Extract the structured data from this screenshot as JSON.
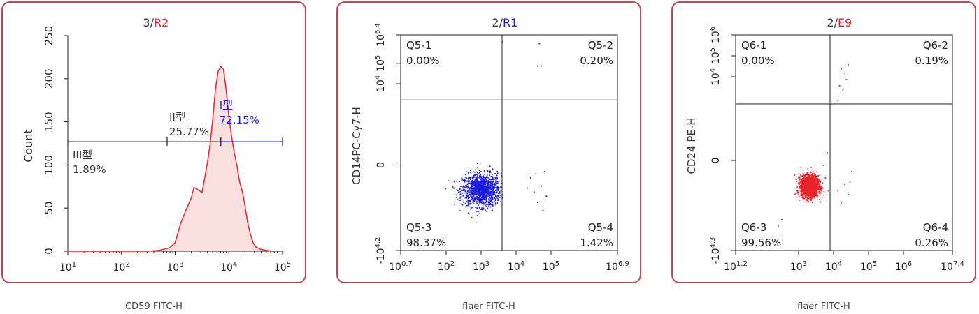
{
  "colors": {
    "frame": "#c8474f",
    "red": "#e8242b",
    "blue": "#1a1adb",
    "fill": "#fbe0e0",
    "axis": "#222222"
  },
  "panels": [
    {
      "title_prefix": "3/",
      "title_gate": "R2",
      "gate_color": "#e8242b",
      "xcaption": "CD59 FITC-H"
    },
    {
      "title_prefix": "2/",
      "title_gate": "R1",
      "gate_color": "#1a1adb",
      "xcaption": "flaer FITC-H"
    },
    {
      "title_prefix": "2/",
      "title_gate": "E9",
      "gate_color": "#e8242b",
      "xcaption": "flaer FITC-H"
    }
  ],
  "chart_data": [
    {
      "type": "area",
      "xscale": "log",
      "ylabel": "Count",
      "xlim": [
        1,
        5
      ],
      "ylim": [
        0,
        250
      ],
      "x_ticks": [
        {
          "base": "10",
          "exp": "1"
        },
        {
          "base": "10",
          "exp": "2"
        },
        {
          "base": "10",
          "exp": "3"
        },
        {
          "base": "10",
          "exp": "4"
        },
        {
          "base": "10",
          "exp": "5"
        }
      ],
      "y_ticks": [
        "0",
        "50",
        "100",
        "150",
        "200",
        "250"
      ],
      "series": [
        {
          "x": [
            1.0,
            1.5,
            2.0,
            2.5,
            2.7,
            2.9,
            3.0,
            3.1,
            3.2,
            3.3,
            3.35,
            3.4,
            3.45,
            3.5,
            3.55,
            3.6,
            3.65,
            3.7,
            3.75,
            3.8,
            3.85,
            3.9,
            3.95,
            4.0,
            4.05,
            4.1,
            4.15,
            4.2,
            4.25,
            4.3,
            4.35,
            4.4,
            4.45,
            4.5,
            4.6,
            4.7,
            4.8
          ],
          "values": [
            0,
            0,
            0,
            0,
            1,
            4,
            10,
            30,
            50,
            60,
            68,
            70,
            68,
            72,
            80,
            100,
            120,
            150,
            190,
            205,
            218,
            210,
            190,
            160,
            130,
            110,
            95,
            85,
            70,
            50,
            35,
            20,
            10,
            5,
            2,
            1,
            0
          ]
        }
      ],
      "gates": [
        {
          "name": "III型",
          "percent": "1.89%",
          "range": [
            1.0,
            2.85
          ],
          "y": 127,
          "color": "#333333"
        },
        {
          "name": "II型",
          "percent": "25.77%",
          "range": [
            2.85,
            3.85
          ],
          "y": 127,
          "color": "#333333"
        },
        {
          "name": "I型",
          "percent": "72.15%",
          "range": [
            3.85,
            5.0
          ],
          "y": 127,
          "color": "#1a1adb"
        }
      ]
    },
    {
      "type": "scatter",
      "xscale": "log",
      "yscale": "log",
      "ylabel": "CD14PC-Cy7-H",
      "xlim": [
        0.7,
        6.9
      ],
      "ylim": [
        -4.2,
        6.4
      ],
      "x_ticks": [
        {
          "base": "10",
          "exp": "0.7"
        },
        {
          "base": "10",
          "exp": "2"
        },
        {
          "base": "10",
          "exp": "3"
        },
        {
          "base": "10",
          "exp": "4"
        },
        {
          "base": "10",
          "exp": "5"
        },
        {
          "base": "10",
          "exp": "6.9"
        }
      ],
      "y_ticks": [
        {
          "base": "10",
          "exp": "4.2",
          "sign": "-"
        },
        {
          "base": "0",
          "exp": ""
        },
        {
          "base": "10",
          "exp": "4"
        },
        {
          "base": "10",
          "exp": "5"
        },
        {
          "base": "10",
          "exp": "6.4"
        }
      ],
      "quadrant_x": 3.6,
      "quadrant_y": 3.2,
      "point_color": "#1a1adb",
      "cluster": {
        "cx": 3.0,
        "cy": -1.2,
        "sx": 0.55,
        "sy": 0.8,
        "n": 1300
      },
      "sparse": [
        [
          3.35,
          -1.4
        ],
        [
          3.4,
          -0.6
        ],
        [
          3.3,
          -2.0
        ],
        [
          4.4,
          -0.6
        ],
        [
          4.5,
          -1.3
        ],
        [
          4.7,
          -1.0
        ],
        [
          4.75,
          -2.2
        ],
        [
          4.8,
          -0.3
        ],
        [
          4.6,
          -1.8
        ],
        [
          4.85,
          -1.5
        ],
        [
          4.3,
          -1.1
        ],
        [
          4.55,
          -0.4
        ],
        [
          4.7,
          4.9
        ],
        [
          4.65,
          6.0
        ],
        [
          4.6,
          4.9
        ],
        [
          3.6,
          6.1
        ]
      ],
      "quadrants": [
        {
          "name": "Q5-1",
          "value": "0.00%",
          "pos": "top-left"
        },
        {
          "name": "Q5-2",
          "value": "0.20%",
          "pos": "top-right"
        },
        {
          "name": "Q5-3",
          "value": "98.37%",
          "pos": "bottom-left"
        },
        {
          "name": "Q5-4",
          "value": "1.42%",
          "pos": "bottom-right"
        }
      ]
    },
    {
      "type": "scatter",
      "xscale": "log",
      "yscale": "log",
      "ylabel": "CD24 PE-H",
      "xlim": [
        1.2,
        7.4
      ],
      "ylim": [
        -4.3,
        6.0
      ],
      "x_ticks": [
        {
          "base": "10",
          "exp": "1.2"
        },
        {
          "base": "10",
          "exp": "3"
        },
        {
          "base": "10",
          "exp": "4"
        },
        {
          "base": "10",
          "exp": "5"
        },
        {
          "base": "10",
          "exp": "6"
        },
        {
          "base": "10",
          "exp": "7.4"
        }
      ],
      "y_ticks": [
        {
          "base": "10",
          "exp": "4.3",
          "sign": "-"
        },
        {
          "base": "0",
          "exp": ""
        },
        {
          "base": "10",
          "exp": "4"
        },
        {
          "base": "10",
          "exp": "5"
        },
        {
          "base": "10",
          "exp": "6"
        }
      ],
      "quadrant_x": 3.9,
      "quadrant_y": 2.7,
      "point_color": "#e8242b",
      "cluster": {
        "cx": 3.3,
        "cy": -1.2,
        "sx": 0.25,
        "sy": 0.5,
        "n": 2200
      },
      "sparse": [
        [
          3.7,
          -0.2
        ],
        [
          3.8,
          0.4
        ],
        [
          3.75,
          -0.8
        ],
        [
          4.25,
          3.4
        ],
        [
          4.3,
          4.2
        ],
        [
          4.2,
          4.4
        ],
        [
          4.35,
          3.9
        ],
        [
          4.1,
          2.9
        ],
        [
          4.15,
          3.6
        ],
        [
          4.4,
          4.6
        ],
        [
          4.3,
          -1.1
        ],
        [
          4.4,
          -1.6
        ],
        [
          4.2,
          -2.0
        ],
        [
          4.5,
          -0.5
        ],
        [
          4.1,
          -1.4
        ],
        [
          4.45,
          -1.0
        ],
        [
          2.4,
          -3.1
        ],
        [
          2.5,
          -2.8
        ]
      ],
      "quadrants": [
        {
          "name": "Q6-1",
          "value": "0.00%",
          "pos": "top-left"
        },
        {
          "name": "Q6-2",
          "value": "0.19%",
          "pos": "top-right"
        },
        {
          "name": "Q6-3",
          "value": "99.56%",
          "pos": "bottom-left"
        },
        {
          "name": "Q6-4",
          "value": "0.26%",
          "pos": "bottom-right"
        }
      ]
    }
  ]
}
